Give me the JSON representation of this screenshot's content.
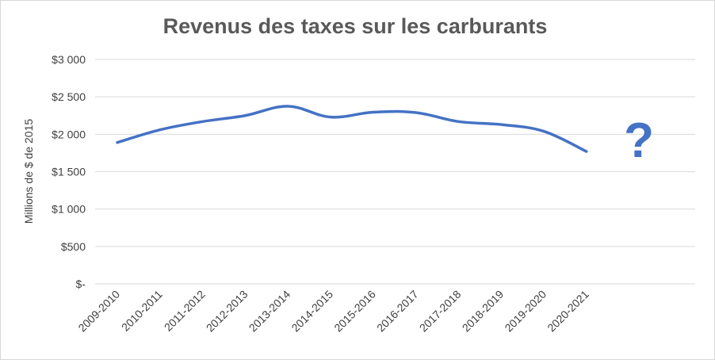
{
  "chart_data": {
    "type": "line",
    "title": "Revenus des taxes sur les carburants",
    "xlabel": "",
    "ylabel": "Millions de $ de 2015",
    "categories": [
      "2009-2010",
      "2010-2011",
      "2011-2012",
      "2012-2013",
      "2013-2014",
      "2014-2015",
      "2015-2016",
      "2016-2017",
      "2017-2018",
      "2018-2019",
      "2019-2020",
      "2020-2021"
    ],
    "series": [
      {
        "values": [
          1890,
          2060,
          2170,
          2250,
          2375,
          2230,
          2295,
          2290,
          2170,
          2130,
          2040,
          1770
        ]
      }
    ],
    "ylim": [
      0,
      3000
    ],
    "yticks": [
      {
        "value": 0,
        "label": "$-"
      },
      {
        "value": 500,
        "label": "$500"
      },
      {
        "value": 1000,
        "label": "$1 000"
      },
      {
        "value": 1500,
        "label": "$1 500"
      },
      {
        "value": 2000,
        "label": "$2 000"
      },
      {
        "value": 2500,
        "label": "$2 500"
      },
      {
        "value": 3000,
        "label": "$3 000"
      }
    ],
    "grid": true,
    "annotation": "?",
    "line_color": "#4472c4"
  }
}
